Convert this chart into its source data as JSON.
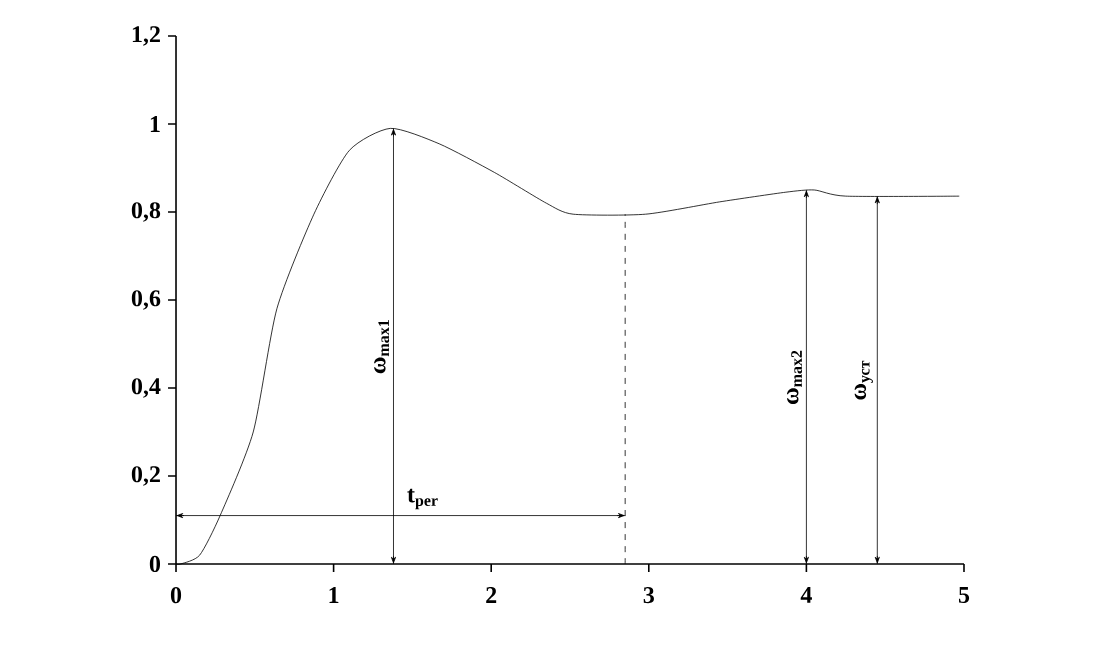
{
  "chart_data": {
    "type": "line",
    "marker": "none",
    "xlim": [
      0,
      5
    ],
    "xticks": [
      0,
      1,
      2,
      3,
      4,
      5
    ],
    "ylim": [
      0,
      1.2
    ],
    "yticks": [
      0,
      {
        "value": 0.2,
        "label": "0,2"
      },
      {
        "value": 0.4,
        "label": "0,4"
      },
      {
        "value": 0.6,
        "label": "0,6"
      },
      {
        "value": 0.8,
        "label": "0,8"
      },
      1,
      {
        "value": 1.2,
        "label": "1,2"
      }
    ],
    "series": [
      {
        "color": "#000000",
        "line_style": "solid",
        "x": [
          0,
          0.03,
          0.15,
          0.28,
          0.49,
          0.64,
          0.875,
          1.1,
          1.36,
          1.67,
          2.02,
          2.35,
          2.52,
          2.98,
          3.45,
          3.87,
          4.05,
          4.25,
          4.97
        ],
        "values": [
          0,
          0,
          0.02,
          0.11,
          0.3,
          0.58,
          0.795,
          0.94,
          0.99,
          0.955,
          0.89,
          0.82,
          0.795,
          0.795,
          0.823,
          0.845,
          0.85,
          0.836,
          0.836
        ]
      },
      {
        "color": "#000000",
        "line_style": "dashed",
        "x": [
          2.85,
          2.85
        ],
        "values": [
          0,
          0.795
        ]
      },
      {
        "name": "ω$_{max1}$",
        "color": "#000000",
        "line_style": "solid",
        "x": [
          1.38,
          1.38
        ],
        "values": [
          0,
          0.99
        ]
      },
      {
        "name": "t$_{per}$",
        "color": "#000000",
        "line_style": "solid",
        "x": [
          0,
          2.85
        ],
        "values": [
          0.11,
          0.11
        ]
      },
      {
        "name": "ω$_{max2}$",
        "color": "#000000",
        "line_style": "solid",
        "x": [
          4.0,
          4.0
        ],
        "values": [
          0,
          0.85
        ]
      },
      {
        "name": "ω$_{уст}$",
        "color": "#000000",
        "line_style": "solid",
        "x": [
          4.45,
          4.45
        ],
        "values": [
          0,
          0.836
        ]
      }
    ]
  }
}
